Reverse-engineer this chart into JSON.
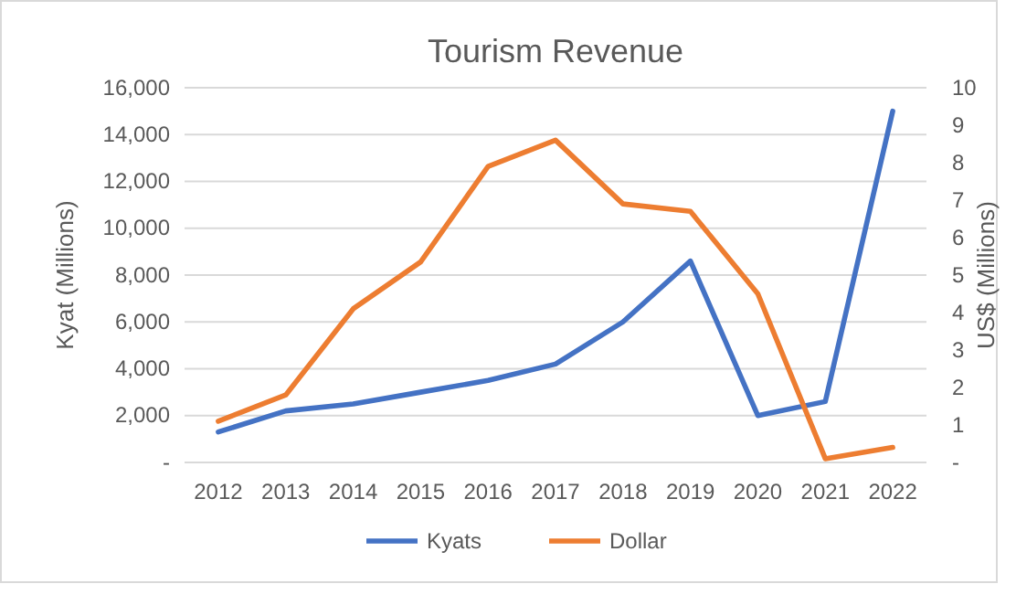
{
  "chart_data": {
    "type": "line",
    "title": "Tourism Revenue",
    "ylabel": "Kyat (Millions)",
    "y2label": "US$ (Millions)",
    "categories": [
      "2012",
      "2013",
      "2014",
      "2015",
      "2016",
      "2017",
      "2018",
      "2019",
      "2020",
      "2021",
      "2022"
    ],
    "series": [
      {
        "name": "Kyats",
        "color": "#4472c4",
        "values": [
          1300,
          2200,
          2500,
          3000,
          3500,
          4200,
          6000,
          8600,
          2000,
          2600,
          15000
        ]
      },
      {
        "name": "Dollar",
        "color": "#ed7d31",
        "axis": "y2",
        "values": [
          1.1,
          1.8,
          4.1,
          5.35,
          7.9,
          8.6,
          6.9,
          6.7,
          4.5,
          0.1,
          0.4
        ]
      }
    ],
    "ylim": [
      0,
      16000
    ],
    "yticks": [
      {
        "value": 0,
        "label": "-"
      },
      {
        "value": 2000,
        "label": "2,000"
      },
      {
        "value": 4000,
        "label": "4,000"
      },
      {
        "value": 6000,
        "label": "6,000"
      },
      {
        "value": 8000,
        "label": "8,000"
      },
      {
        "value": 10000,
        "label": "10,000"
      },
      {
        "value": 12000,
        "label": "12,000"
      },
      {
        "value": 14000,
        "label": "14,000"
      },
      {
        "value": 16000,
        "label": "16,000"
      }
    ],
    "y2lim": [
      0,
      10
    ],
    "y2ticks": [
      {
        "value": 0,
        "label": "-"
      },
      1,
      2,
      3,
      4,
      5,
      6,
      7,
      8,
      9,
      10
    ],
    "grid": "y",
    "legend": "bottom",
    "marker": "none",
    "line_style": "solid"
  }
}
